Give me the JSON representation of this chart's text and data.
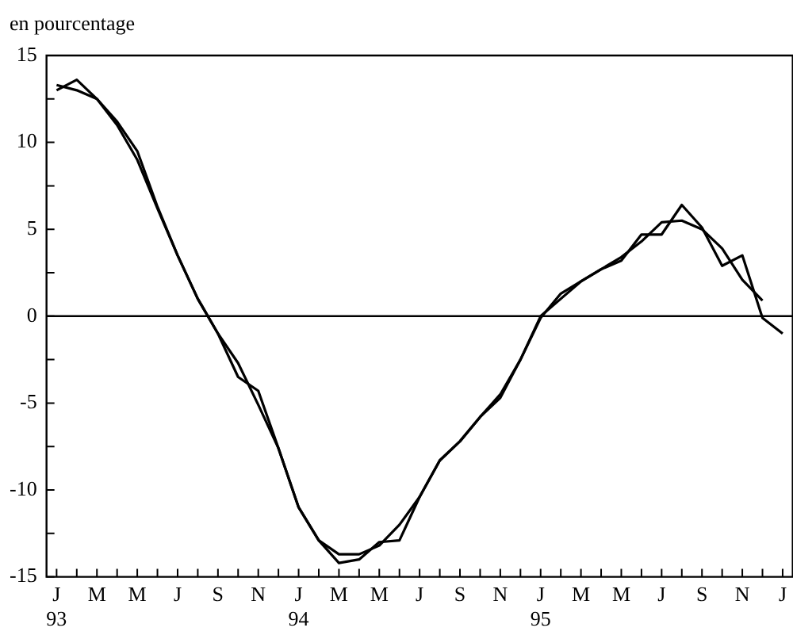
{
  "chart_data": {
    "type": "line",
    "ylabel": "en pourcentage",
    "categories": [
      "J 93",
      null,
      "M",
      null,
      "M",
      null,
      "J",
      null,
      "S",
      null,
      "N",
      null,
      "J 94",
      null,
      "M",
      null,
      "M",
      null,
      "J",
      null,
      "S",
      null,
      "N",
      null,
      "J 95",
      null,
      "M",
      null,
      "M",
      null,
      "J",
      null,
      "S",
      null,
      "N",
      null,
      "J"
    ],
    "series": [
      {
        "color": "#000000",
        "values": [
          13.0,
          13.6,
          12.5,
          11.2,
          9.5,
          6.3,
          3.5,
          1.0,
          -1.0,
          -3.5,
          -4.3,
          -7.6,
          -11.0,
          -12.9,
          -14.2,
          -14.0,
          -13.0,
          -12.9,
          -10.4,
          -8.3,
          -7.2,
          -5.8,
          -4.7,
          -2.5,
          -0.1,
          1.3,
          2.0,
          2.7,
          3.2,
          4.7,
          4.7,
          6.4,
          5.1,
          2.9,
          3.5,
          -0.1,
          -1.0
        ]
      },
      {
        "color": "#000000",
        "values": [
          13.3,
          13.0,
          12.5,
          11.0,
          9.0,
          6.2,
          3.5,
          1.0,
          -1.0,
          -2.7,
          -5.1,
          -7.6,
          -11.0,
          -12.9,
          -13.7,
          -13.7,
          -13.2,
          -12.0,
          -10.4,
          -8.3,
          -7.2,
          -5.8,
          -4.5,
          -2.5,
          0.0,
          1.0,
          2.0,
          2.7,
          3.4,
          4.3,
          5.4,
          5.5,
          5.0,
          3.9,
          2.1,
          0.9,
          null
        ]
      }
    ],
    "ylim": [
      -15,
      15
    ],
    "yticks": [
      -15,
      {
        "value": -12.5,
        "label": null
      },
      -10,
      {
        "value": -7.5,
        "label": null
      },
      -5,
      {
        "value": -2.5,
        "label": null
      },
      0,
      {
        "value": 2.5,
        "label": null
      },
      5,
      {
        "value": 7.5,
        "label": null
      },
      10,
      {
        "value": 12.5,
        "label": null
      },
      15
    ],
    "ref_lines": [
      {
        "axis": "y",
        "value": 0,
        "color": "#000000"
      }
    ],
    "grid": false,
    "legend": false,
    "marker": "none",
    "line_style": "solid"
  }
}
